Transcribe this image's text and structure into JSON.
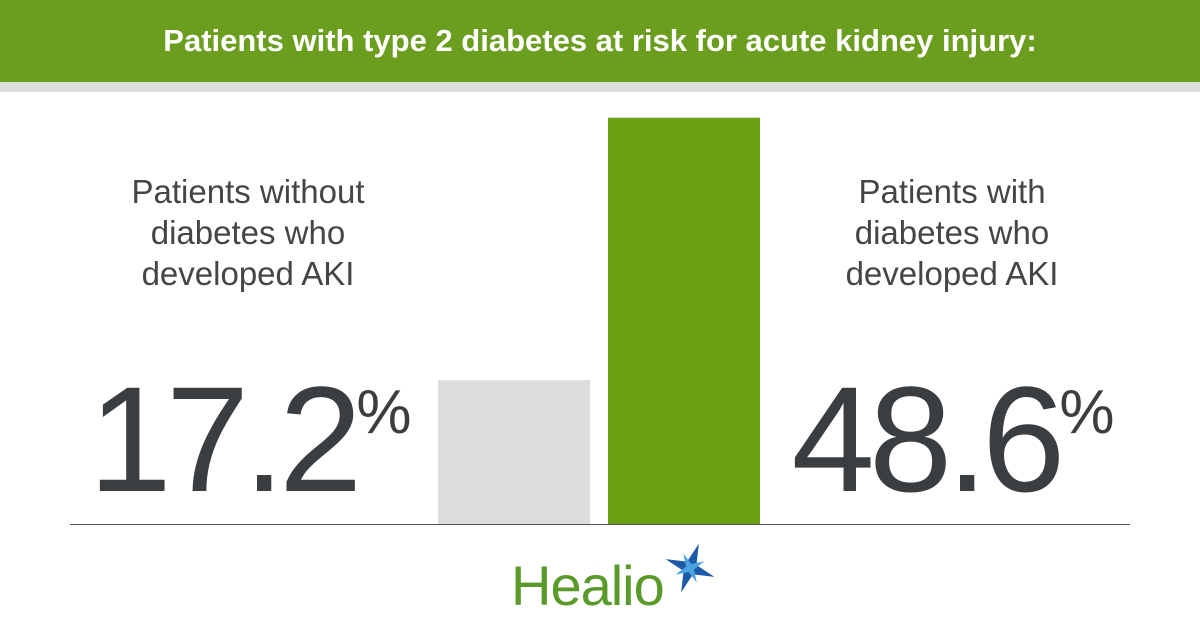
{
  "chart_data": {
    "type": "bar",
    "title": "Patients with type 2 diabetes at risk for acute kidney injury:",
    "categories": [
      "Patients without diabetes who developed AKI",
      "Patients with diabetes who developed AKI"
    ],
    "values": [
      17.2,
      48.6
    ],
    "value_labels": [
      "17.2%",
      "48.6%"
    ],
    "colors": [
      "#dcdcdc",
      "#6ba012"
    ],
    "ylim": [
      0,
      50
    ]
  },
  "logo": "Healio"
}
